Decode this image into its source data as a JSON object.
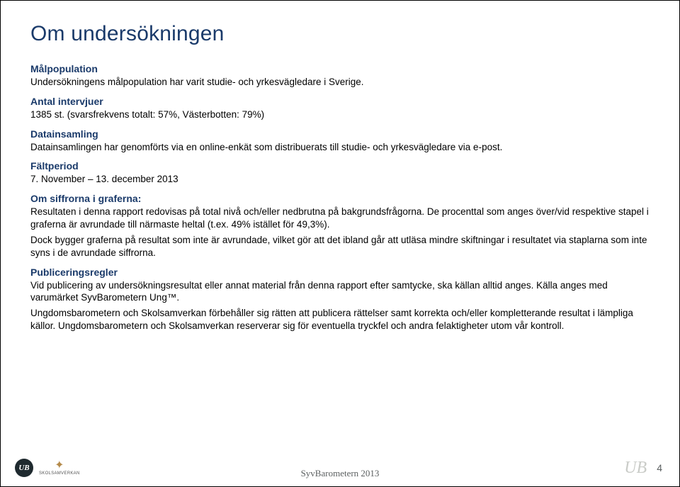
{
  "title": "Om undersökningen",
  "sections": {
    "malpopulation": {
      "heading": "Målpopulation",
      "text": "Undersökningens målpopulation har varit studie- och yrkesvägledare i Sverige."
    },
    "antal": {
      "heading": "Antal intervjuer",
      "text": "1385 st. (svarsfrekvens totalt: 57%, Västerbotten: 79%)"
    },
    "datainsamling": {
      "heading": "Datainsamling",
      "text": "Datainsamlingen har genomförts via en online-enkät som distribuerats till studie- och yrkesvägledare via e-post."
    },
    "faltperiod": {
      "heading": "Fältperiod",
      "text": "7. November – 13. december 2013"
    },
    "siffror": {
      "heading": "Om siffrorna i graferna:",
      "p1": "Resultaten i denna rapport redovisas på total nivå och/eller nedbrutna på bakgrundsfrågorna. De procenttal som anges över/vid respektive stapel i graferna är avrundade till närmaste heltal (t.ex. 49% istället för 49,3%).",
      "p2": "Dock bygger graferna på resultat som inte är avrundade, vilket gör att det ibland går att utläsa mindre skiftningar i resultatet via staplarna som inte syns i de avrundade siffrorna."
    },
    "publicering": {
      "heading": "Publiceringsregler",
      "p1": "Vid publicering av undersökningsresultat eller annat material från denna rapport efter samtycke, ska källan alltid anges. Källa anges med varumärket SyvBarometern Ung™.",
      "p2": "Ungdomsbarometern och Skolsamverkan förbehåller sig rätten att publicera rättelser samt korrekta och/eller kompletterande resultat i lämpliga källor. Ungdomsbarometern och Skolsamverkan reserverar sig för eventuella tryckfel och andra felaktigheter utom vår kontroll."
    }
  },
  "footer": {
    "ub_badge": "UB",
    "skol_label": "SKOLSAMVERKAN",
    "center": "SyvBarometern 2013",
    "ub_script": "UB",
    "page": "4"
  },
  "colors": {
    "heading": "#1a3a6a",
    "body": "#000000",
    "footer_text": "#5c6061",
    "badge_bg": "#1f2a2f",
    "script": "#caccc8"
  }
}
